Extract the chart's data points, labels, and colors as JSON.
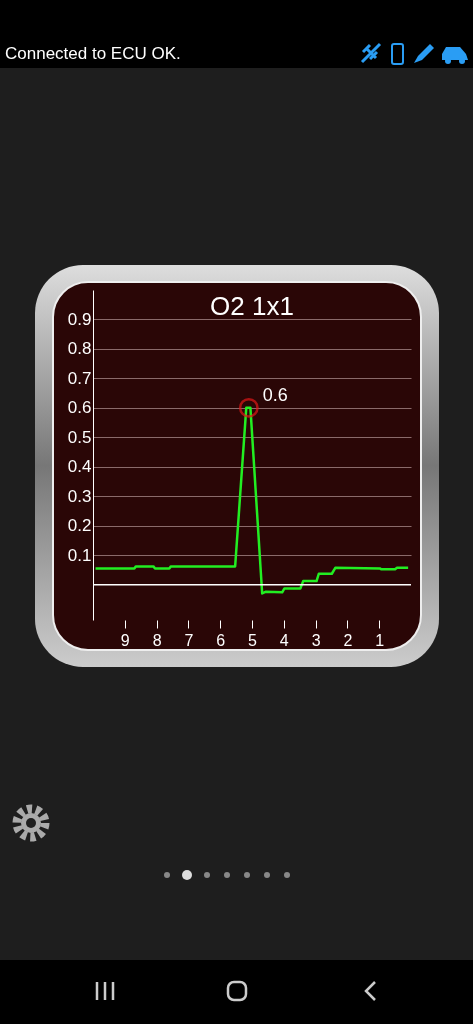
{
  "chart_data": {
    "type": "line",
    "title": "O2 1x1",
    "x": [
      9.92,
      8.7,
      8.65,
      8.1,
      8.05,
      7.6,
      7.55,
      5.53,
      5.18,
      5.05,
      4.68,
      4.56,
      4.05,
      3.98,
      3.48,
      3.39,
      2.97,
      2.9,
      2.49,
      2.38,
      0.98,
      0.93,
      0.5,
      0.44,
      0.09
    ],
    "series": [
      {
        "color": "#22ee22",
        "values": [
          0.055,
          0.055,
          0.062,
          0.062,
          0.055,
          0.055,
          0.062,
          0.062,
          0.6,
          0.6,
          -0.03,
          -0.024,
          -0.026,
          -0.013,
          -0.013,
          0.012,
          0.012,
          0.037,
          0.037,
          0.057,
          0.055,
          0.052,
          0.052,
          0.057,
          0.057
        ]
      }
    ],
    "xlim": [
      10,
      0
    ],
    "xticks": [
      9,
      8,
      7,
      6,
      5,
      4,
      3,
      2,
      1
    ],
    "ylim": [
      -0.12,
      1.0
    ],
    "yticks": [
      0.1,
      0.2,
      0.3,
      0.4,
      0.5,
      0.6,
      0.7,
      0.8,
      0.9
    ],
    "grid": "y",
    "marker": "none",
    "line_style": "solid",
    "ref_lines": [
      {
        "axis": "y",
        "value": 0,
        "color": "#ffffff"
      }
    ],
    "annotations": [
      {
        "text": "0.6",
        "x": 5.1,
        "y": 0.6
      },
      "Connected to ECU OK."
    ]
  }
}
